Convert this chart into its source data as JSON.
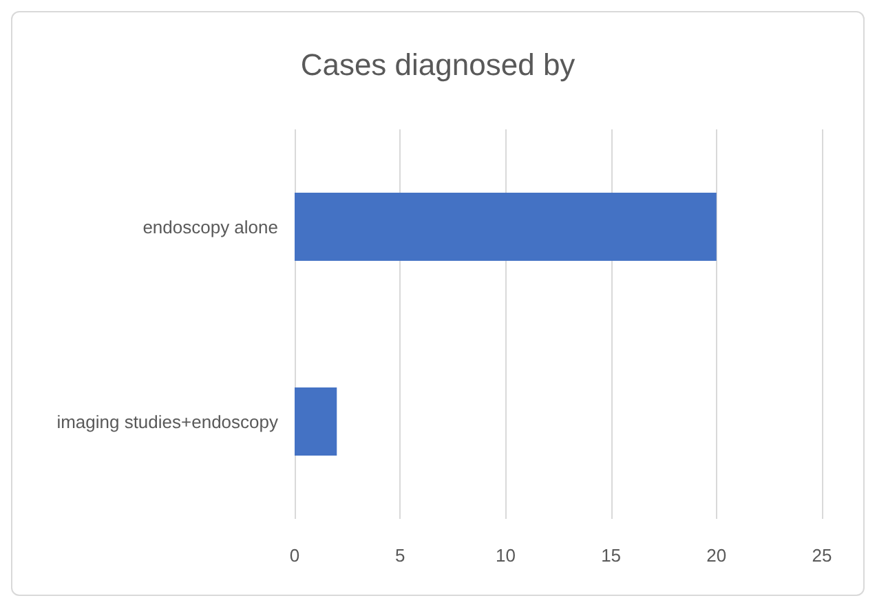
{
  "chart_data": {
    "type": "bar",
    "title": "Cases diagnosed by",
    "orientation": "horizontal",
    "categories": [
      "endoscopy alone",
      "imaging studies+endoscopy"
    ],
    "series": [
      {
        "color": "#4472c4",
        "values": [
          20,
          2
        ]
      }
    ],
    "xlim": [
      0,
      25
    ],
    "xticks": [
      0,
      5,
      10,
      15,
      20,
      25
    ],
    "grid": "x"
  }
}
